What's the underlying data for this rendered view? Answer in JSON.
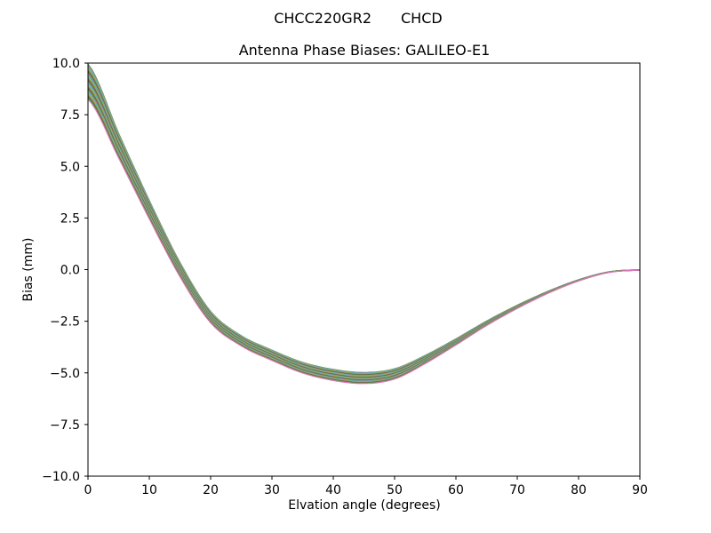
{
  "figure": {
    "background": "#ffffff",
    "text_color": "#000000",
    "spine_color": "#000000"
  },
  "header": {
    "suptitle_left": "CHCC220GR2",
    "suptitle_right": "CHCD",
    "axes_title": "Antenna Phase Biases: GALILEO-E1"
  },
  "chart_data": {
    "type": "line",
    "suptitle": "CHCC220GR2      CHCD",
    "title": "Antenna Phase Biases: GALILEO-E1",
    "xlabel": "Elvation angle (degrees)",
    "ylabel": "Bias (mm)",
    "xlim": [
      0,
      90
    ],
    "ylim": [
      -10,
      10
    ],
    "xticks": [
      0,
      10,
      20,
      30,
      40,
      50,
      60,
      70,
      80,
      90
    ],
    "xtick_labels": [
      "0",
      "10",
      "20",
      "30",
      "40",
      "50",
      "60",
      "70",
      "80",
      "90"
    ],
    "yticks": [
      10,
      7.5,
      5,
      2.5,
      0,
      -2.5,
      -5,
      -7.5,
      -10
    ],
    "ytick_labels": [
      "10.0",
      "7.5",
      "5.0",
      "2.5",
      "0.0",
      "−2.5",
      "−5.0",
      "−7.5",
      "−10.0"
    ],
    "grid": false,
    "legend": "none",
    "line_width": 1.2,
    "x": [
      0,
      5,
      10,
      15,
      20,
      25,
      30,
      35,
      40,
      45,
      50,
      55,
      60,
      65,
      70,
      75,
      80,
      85,
      90
    ],
    "center_bias_mm": [
      9.1,
      6.0,
      2.9,
      0.0,
      -2.3,
      -3.45,
      -4.15,
      -4.75,
      -5.1,
      -5.25,
      -5.05,
      -4.35,
      -3.5,
      -2.6,
      -1.8,
      -1.1,
      -0.52,
      -0.12,
      -0.02
    ],
    "spread_mm": [
      0.85,
      0.6,
      0.45,
      0.35,
      0.28,
      0.25,
      0.25,
      0.26,
      0.27,
      0.27,
      0.25,
      0.2,
      0.15,
      0.11,
      0.08,
      0.05,
      0.03,
      0.015,
      0.01
    ],
    "series": [
      {
        "color": "#2ca02c",
        "offset_factor": 1.0
      },
      {
        "color": "#e377c2",
        "offset_factor": 0.92
      },
      {
        "color": "#17becf",
        "offset_factor": 0.84
      },
      {
        "color": "#bcbd22",
        "offset_factor": 0.76
      },
      {
        "color": "#7f7f7f",
        "offset_factor": 0.68
      },
      {
        "color": "#8c564b",
        "offset_factor": 0.6
      },
      {
        "color": "#2ca02c",
        "offset_factor": 0.52
      },
      {
        "color": "#e377c2",
        "offset_factor": 0.44
      },
      {
        "color": "#17becf",
        "offset_factor": 0.36
      },
      {
        "color": "#bcbd22",
        "offset_factor": 0.28
      },
      {
        "color": "#7f7f7f",
        "offset_factor": 0.2
      },
      {
        "color": "#8c564b",
        "offset_factor": 0.12
      },
      {
        "color": "#2ca02c",
        "offset_factor": 0.04
      },
      {
        "color": "#e377c2",
        "offset_factor": -0.04
      },
      {
        "color": "#17becf",
        "offset_factor": -0.12
      },
      {
        "color": "#bcbd22",
        "offset_factor": -0.2
      },
      {
        "color": "#7f7f7f",
        "offset_factor": -0.28
      },
      {
        "color": "#8c564b",
        "offset_factor": -0.36
      },
      {
        "color": "#2ca02c",
        "offset_factor": -0.44
      },
      {
        "color": "#e377c2",
        "offset_factor": -0.52
      },
      {
        "color": "#17becf",
        "offset_factor": -0.6
      },
      {
        "color": "#bcbd22",
        "offset_factor": -0.68
      },
      {
        "color": "#7f7f7f",
        "offset_factor": -0.76
      },
      {
        "color": "#8c564b",
        "offset_factor": -0.84
      },
      {
        "color": "#2ca02c",
        "offset_factor": -0.92
      },
      {
        "color": "#e377c2",
        "offset_factor": -1.0
      }
    ]
  }
}
